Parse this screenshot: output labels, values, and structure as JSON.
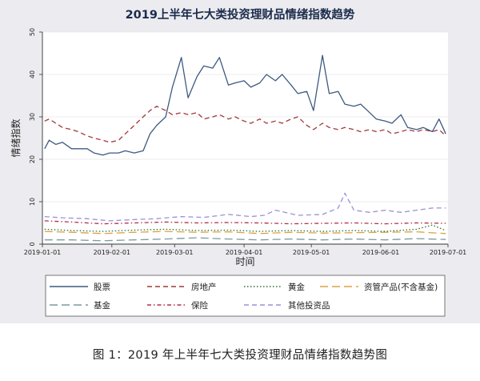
{
  "caption": "图 1：2019 年上半年七大类投资理财品情绪指数趋势图",
  "chart_data": {
    "type": "line",
    "title": "2019上半年七大类投资理财品情绪指数趋势",
    "xlabel": "时间",
    "ylabel": "情绪指数",
    "xlim": [
      "2019-01-01",
      "2019-07-01"
    ],
    "ylim": [
      0,
      50
    ],
    "y_ticks": [
      "0",
      "10",
      "20",
      "30",
      "40",
      "50"
    ],
    "x_ticks": [
      "2019-01-01",
      "2019-02-01",
      "2019-03-01",
      "2019-04-01",
      "2019-05-01",
      "2019-06-01",
      "2019-07-01"
    ],
    "grid": true,
    "legend_position": "bottom",
    "series": [
      {
        "name": "股票",
        "color": "#3d5a80",
        "style": "solid",
        "x": [
          "2019-01-02",
          "2019-01-04",
          "2019-01-07",
          "2019-01-10",
          "2019-01-14",
          "2019-01-17",
          "2019-01-21",
          "2019-01-24",
          "2019-01-28",
          "2019-01-31",
          "2019-02-04",
          "2019-02-07",
          "2019-02-11",
          "2019-02-15",
          "2019-02-18",
          "2019-02-21",
          "2019-02-25",
          "2019-02-28",
          "2019-03-04",
          "2019-03-07",
          "2019-03-11",
          "2019-03-14",
          "2019-03-18",
          "2019-03-21",
          "2019-03-25",
          "2019-03-28",
          "2019-04-01",
          "2019-04-04",
          "2019-04-08",
          "2019-04-11",
          "2019-04-15",
          "2019-04-18",
          "2019-04-22",
          "2019-04-25",
          "2019-04-29",
          "2019-05-02",
          "2019-05-06",
          "2019-05-09",
          "2019-05-13",
          "2019-05-16",
          "2019-05-20",
          "2019-05-23",
          "2019-05-27",
          "2019-05-30",
          "2019-06-03",
          "2019-06-06",
          "2019-06-10",
          "2019-06-13",
          "2019-06-17",
          "2019-06-20",
          "2019-06-24",
          "2019-06-27",
          "2019-06-30"
        ],
        "y": [
          22.5,
          24.5,
          23.5,
          24.0,
          22.5,
          22.5,
          22.5,
          21.5,
          21.0,
          21.5,
          21.5,
          22.0,
          21.5,
          22.0,
          26.0,
          28.0,
          30.0,
          37.0,
          44.0,
          34.5,
          39.5,
          42.0,
          41.5,
          44.0,
          37.5,
          38.0,
          38.5,
          37.0,
          38.0,
          40.0,
          38.5,
          40.0,
          37.5,
          35.5,
          36.0,
          31.5,
          44.5,
          35.5,
          36.0,
          33.0,
          32.5,
          33.0,
          31.0,
          29.5,
          29.0,
          28.5,
          30.5,
          27.5,
          27.0,
          27.5,
          26.5,
          29.5,
          26.0
        ]
      },
      {
        "name": "房地产",
        "color": "#a33a3a",
        "style": "dashed",
        "x": [
          "2019-01-02",
          "2019-01-04",
          "2019-01-07",
          "2019-01-10",
          "2019-01-14",
          "2019-01-17",
          "2019-01-21",
          "2019-01-24",
          "2019-01-28",
          "2019-01-31",
          "2019-02-04",
          "2019-02-07",
          "2019-02-11",
          "2019-02-15",
          "2019-02-18",
          "2019-02-21",
          "2019-02-25",
          "2019-02-28",
          "2019-03-04",
          "2019-03-07",
          "2019-03-11",
          "2019-03-14",
          "2019-03-18",
          "2019-03-21",
          "2019-03-25",
          "2019-03-28",
          "2019-04-01",
          "2019-04-04",
          "2019-04-08",
          "2019-04-11",
          "2019-04-15",
          "2019-04-18",
          "2019-04-22",
          "2019-04-25",
          "2019-04-29",
          "2019-05-02",
          "2019-05-06",
          "2019-05-09",
          "2019-05-13",
          "2019-05-16",
          "2019-05-20",
          "2019-05-23",
          "2019-05-27",
          "2019-05-30",
          "2019-06-03",
          "2019-06-06",
          "2019-06-10",
          "2019-06-13",
          "2019-06-17",
          "2019-06-20",
          "2019-06-24",
          "2019-06-27",
          "2019-06-30"
        ],
        "y": [
          29.0,
          29.5,
          28.5,
          27.5,
          27.0,
          26.5,
          25.5,
          25.0,
          24.5,
          24.0,
          24.5,
          26.0,
          28.0,
          30.0,
          31.5,
          32.5,
          31.5,
          30.5,
          31.0,
          30.5,
          31.0,
          29.5,
          30.0,
          30.5,
          29.5,
          30.0,
          29.0,
          28.5,
          29.5,
          28.5,
          29.0,
          28.5,
          29.5,
          30.0,
          28.0,
          27.0,
          28.5,
          27.5,
          27.0,
          27.5,
          27.0,
          26.5,
          27.0,
          26.5,
          27.0,
          26.0,
          26.5,
          27.0,
          26.5,
          27.0,
          26.5,
          27.0,
          25.5
        ]
      },
      {
        "name": "黄金",
        "color": "#2e6e2e",
        "style": "dotted",
        "x": [
          "2019-01-02",
          "2019-01-14",
          "2019-01-28",
          "2019-02-11",
          "2019-02-25",
          "2019-03-11",
          "2019-03-25",
          "2019-04-08",
          "2019-04-22",
          "2019-05-06",
          "2019-05-20",
          "2019-06-03",
          "2019-06-17",
          "2019-06-24",
          "2019-06-30"
        ],
        "y": [
          3.5,
          3.2,
          3.0,
          3.3,
          3.5,
          3.2,
          3.3,
          3.0,
          3.2,
          3.0,
          3.2,
          3.0,
          3.5,
          4.5,
          3.2
        ]
      },
      {
        "name": "资管产品(不含基金)",
        "color": "#e0a040",
        "style": "longdash",
        "x": [
          "2019-01-02",
          "2019-01-14",
          "2019-01-28",
          "2019-02-11",
          "2019-02-25",
          "2019-03-11",
          "2019-03-25",
          "2019-04-08",
          "2019-04-22",
          "2019-05-06",
          "2019-05-20",
          "2019-06-03",
          "2019-06-17",
          "2019-06-30"
        ],
        "y": [
          3.0,
          2.8,
          2.5,
          2.8,
          3.0,
          2.8,
          2.9,
          2.5,
          2.8,
          2.6,
          2.7,
          2.8,
          2.9,
          2.5
        ]
      },
      {
        "name": "基金",
        "color": "#7a9aa0",
        "style": "longdash",
        "x": [
          "2019-01-02",
          "2019-01-14",
          "2019-01-28",
          "2019-02-11",
          "2019-02-25",
          "2019-03-11",
          "2019-03-25",
          "2019-04-08",
          "2019-04-22",
          "2019-05-06",
          "2019-05-20",
          "2019-06-03",
          "2019-06-17",
          "2019-06-30"
        ],
        "y": [
          1.0,
          1.0,
          0.8,
          1.0,
          1.2,
          1.5,
          1.2,
          1.0,
          1.2,
          1.0,
          1.2,
          1.0,
          1.3,
          1.1
        ]
      },
      {
        "name": "保险",
        "color": "#b0304a",
        "style": "dashdot",
        "x": [
          "2019-01-02",
          "2019-01-14",
          "2019-01-28",
          "2019-02-11",
          "2019-02-25",
          "2019-03-11",
          "2019-03-25",
          "2019-04-08",
          "2019-04-22",
          "2019-05-06",
          "2019-05-20",
          "2019-06-03",
          "2019-06-17",
          "2019-06-30"
        ],
        "y": [
          5.5,
          5.2,
          4.8,
          5.0,
          5.2,
          5.0,
          5.1,
          5.0,
          4.8,
          4.9,
          5.0,
          4.8,
          5.0,
          4.9
        ]
      },
      {
        "name": "其他投资品",
        "color": "#9a90d8",
        "style": "dashed",
        "x": [
          "2019-01-02",
          "2019-01-10",
          "2019-01-21",
          "2019-01-31",
          "2019-02-11",
          "2019-02-21",
          "2019-03-04",
          "2019-03-14",
          "2019-03-25",
          "2019-04-04",
          "2019-04-10",
          "2019-04-15",
          "2019-04-25",
          "2019-05-06",
          "2019-05-13",
          "2019-05-16",
          "2019-05-20",
          "2019-05-27",
          "2019-06-03",
          "2019-06-10",
          "2019-06-17",
          "2019-06-24",
          "2019-06-30"
        ],
        "y": [
          6.5,
          6.2,
          6.0,
          5.5,
          5.8,
          6.0,
          6.5,
          6.3,
          7.0,
          6.5,
          6.8,
          8.0,
          6.8,
          7.0,
          8.5,
          12.0,
          8.0,
          7.5,
          8.0,
          7.5,
          8.0,
          8.5,
          8.5
        ]
      }
    ]
  }
}
